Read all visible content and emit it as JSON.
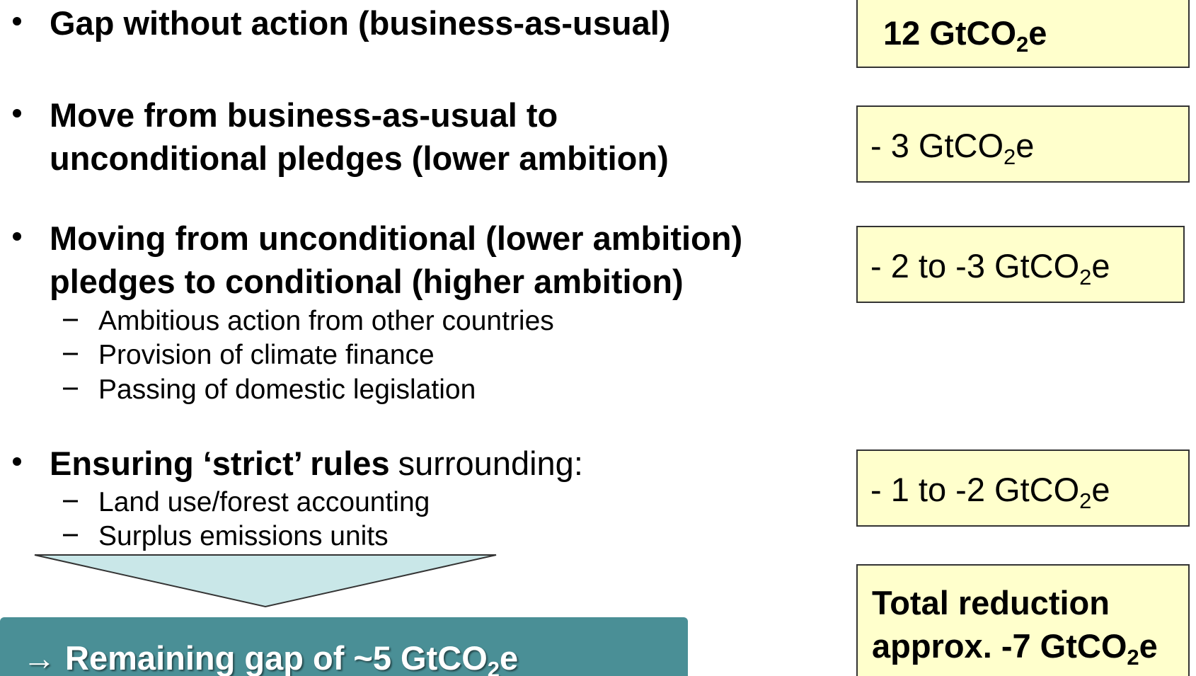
{
  "bullets": [
    {
      "text": "Gap without action (business-as-usual)"
    },
    {
      "lines": [
        "Move from business-as-usual to",
        "unconditional pledges (lower ambition)"
      ]
    },
    {
      "lines": [
        "Moving from unconditional (lower ambition)",
        "pledges to conditional (higher ambition)"
      ],
      "subitems": [
        "Ambitious action from other countries",
        "Provision of climate finance",
        "Passing of domestic legislation"
      ]
    },
    {
      "bold": "Ensuring ‘strict’ rules",
      "text": "surrounding:",
      "subitems": [
        "Land use/forest accounting",
        "Surplus emissions units"
      ]
    }
  ],
  "boxes": [
    [
      "12 GtCO",
      "2",
      "e"
    ],
    [
      "- 3 GtCO",
      "2",
      "e"
    ],
    [
      "- 2 to -3 GtCO",
      "2",
      "e"
    ],
    [
      "- 1 to -2 GtCO",
      "2",
      "e"
    ]
  ],
  "total": {
    "line1": "Total reduction",
    "line2": [
      "approx. -7 GtCO",
      "2",
      "e"
    ]
  },
  "result": [
    "→ Remaining gap of ~5 GtCO",
    "2",
    "e"
  ]
}
